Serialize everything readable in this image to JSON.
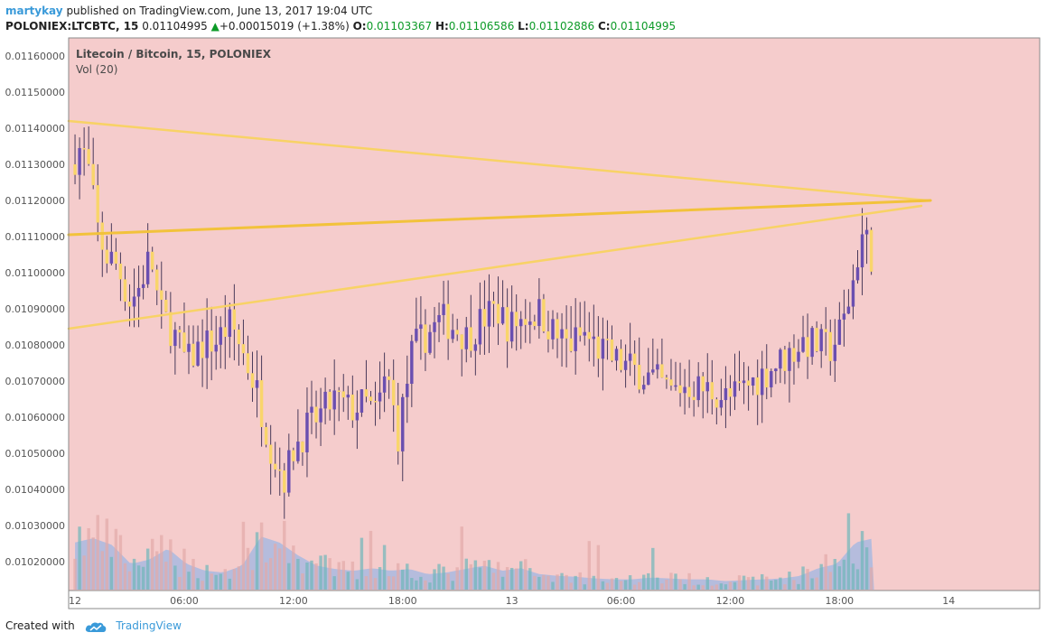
{
  "header": {
    "user": "martykay",
    "published": "published on TradingView.com, June 13, 2017 19:04 UTC"
  },
  "ticker": {
    "symbol": "POLONIEX:LTCBTC, 15",
    "last": "0.01104995",
    "change_arrow": "▲",
    "change": "+0.00015019 (+1.38%)",
    "open_label": "O:",
    "open": "0.01103367",
    "high_label": "H:",
    "high": "0.01106586",
    "low_label": "L:",
    "low": "0.01102886",
    "close_label": "C:",
    "close": "0.01104995"
  },
  "footer": {
    "created_with": "Created with",
    "brand": "TradingView"
  },
  "colors": {
    "background": "#f5cccc",
    "up_candle": "#6a4fb0",
    "down_candle": "#f9d56b",
    "trendline": "#f8d266",
    "trendline_strong": "#f2c23b",
    "volume_ma_fill": "#9fb7e3",
    "volume_up": "#6fb6b9",
    "volume_down": "#e2aaa8"
  },
  "chart_data": {
    "type": "candlestick",
    "title": "Litecoin / Bitcoin, 15, POLONIEX",
    "subtitle": "Vol (20)",
    "y_tick_labels": [
      "0.01160000",
      "0.01150000",
      "0.01140000",
      "0.01130000",
      "0.01120000",
      "0.01110000",
      "0.01100000",
      "0.01090000",
      "0.01080000",
      "0.01070000",
      "0.01060000",
      "0.01050000",
      "0.01040000",
      "0.01030000",
      "0.01020000"
    ],
    "y_ticks": [
      0.0116,
      0.0115,
      0.0114,
      0.0113,
      0.0112,
      0.0111,
      0.011,
      0.0109,
      0.0108,
      0.0107,
      0.0106,
      0.0105,
      0.0104,
      0.0103,
      0.0102
    ],
    "ylim": [
      0.01012,
      0.01165
    ],
    "x_tick_labels": [
      "12",
      "06:00",
      "12:00",
      "18:00",
      "13",
      "06:00",
      "12:00",
      "18:00",
      "14"
    ],
    "x_tick_hours": [
      0,
      6,
      12,
      18,
      24,
      30,
      36,
      42,
      48
    ],
    "xlim_hours": [
      -0.35,
      53
    ],
    "bar_interval_hours": 0.25,
    "trendlines": [
      {
        "from": [
          -0.35,
          0.01142
        ],
        "to": [
          46.8,
          0.0112
        ],
        "style": "light"
      },
      {
        "from": [
          -0.35,
          0.010845
        ],
        "to": [
          46.5,
          0.011185
        ],
        "style": "light"
      },
      {
        "from": [
          -0.35,
          0.011105
        ],
        "to": [
          47.0,
          0.0112
        ],
        "style": "strong"
      }
    ],
    "anchors": [
      [
        0,
        0.0113
      ],
      [
        0.6,
        0.01135
      ],
      [
        1.0,
        0.01128
      ],
      [
        1.5,
        0.01112
      ],
      [
        1.9,
        0.01105
      ],
      [
        2.6,
        0.01102
      ],
      [
        3.2,
        0.01092
      ],
      [
        3.7,
        0.01095
      ],
      [
        4.4,
        0.01105
      ],
      [
        4.9,
        0.01089
      ],
      [
        5.6,
        0.01084
      ],
      [
        6.4,
        0.01075
      ],
      [
        7.2,
        0.0108
      ],
      [
        8.0,
        0.01081
      ],
      [
        8.8,
        0.01086
      ],
      [
        9.4,
        0.01079
      ],
      [
        10.2,
        0.01068
      ],
      [
        11.1,
        0.0105
      ],
      [
        11.8,
        0.01043
      ],
      [
        12.3,
        0.01052
      ],
      [
        13.0,
        0.01057
      ],
      [
        13.8,
        0.01061
      ],
      [
        14.5,
        0.01065
      ],
      [
        15.4,
        0.01062
      ],
      [
        16.2,
        0.01064
      ],
      [
        16.8,
        0.01061
      ],
      [
        17.4,
        0.01072
      ],
      [
        18.0,
        0.01055
      ],
      [
        18.8,
        0.01079
      ],
      [
        19.6,
        0.01083
      ],
      [
        20.4,
        0.01087
      ],
      [
        21.1,
        0.01085
      ],
      [
        21.8,
        0.01082
      ],
      [
        22.6,
        0.01087
      ],
      [
        23.4,
        0.0109
      ],
      [
        24.1,
        0.01085
      ],
      [
        25.0,
        0.01088
      ],
      [
        25.8,
        0.01089
      ],
      [
        26.6,
        0.01083
      ],
      [
        27.4,
        0.0108
      ],
      [
        28.2,
        0.01083
      ],
      [
        29.0,
        0.01079
      ],
      [
        29.8,
        0.01076
      ],
      [
        30.6,
        0.01074
      ],
      [
        31.4,
        0.01072
      ],
      [
        32.2,
        0.0107
      ],
      [
        33.0,
        0.01067
      ],
      [
        33.8,
        0.01069
      ],
      [
        34.6,
        0.01068
      ],
      [
        35.4,
        0.01067
      ],
      [
        36.2,
        0.01065
      ],
      [
        37.0,
        0.01068
      ],
      [
        37.8,
        0.01071
      ],
      [
        38.6,
        0.01074
      ],
      [
        39.4,
        0.01077
      ],
      [
        40.2,
        0.01081
      ],
      [
        41.0,
        0.0108
      ],
      [
        41.8,
        0.01079
      ],
      [
        42.4,
        0.01085
      ],
      [
        42.9,
        0.01095
      ],
      [
        43.3,
        0.01106
      ],
      [
        43.6,
        0.01112
      ],
      [
        43.9,
        0.01105
      ]
    ],
    "volume_levels": [
      0.55,
      0.6,
      0.52,
      0.3,
      0.35,
      0.48,
      0.3,
      0.22,
      0.2,
      0.28,
      0.62,
      0.55,
      0.4,
      0.28,
      0.24,
      0.22,
      0.25,
      0.22,
      0.24,
      0.18,
      0.2,
      0.24,
      0.28,
      0.22,
      0.25,
      0.18,
      0.16,
      0.15,
      0.13,
      0.12,
      0.12,
      0.14,
      0.13,
      0.12,
      0.12,
      0.1,
      0.11,
      0.12,
      0.13,
      0.16,
      0.25,
      0.3,
      0.55,
      0.6
    ]
  }
}
